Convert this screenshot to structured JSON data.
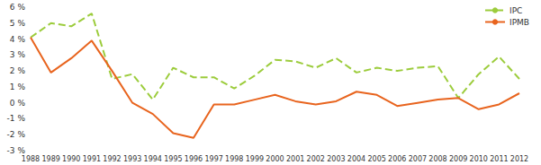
{
  "chart_data": {
    "type": "line",
    "categories": [
      "1988",
      "1989",
      "1990",
      "1991",
      "1992",
      "1993",
      "1994",
      "1995",
      "1996",
      "1997",
      "1998",
      "1999",
      "2000",
      "2001",
      "2002",
      "2003",
      "2004",
      "2005",
      "2006",
      "2007",
      "2008",
      "2009",
      "2010",
      "2011",
      "2012"
    ],
    "series": [
      {
        "name": "IPC",
        "color": "#9ccc3c",
        "line_style": "dashed",
        "marker": "none",
        "values": [
          4.1,
          5.0,
          4.8,
          5.6,
          1.5,
          1.8,
          0.2,
          2.2,
          1.6,
          1.6,
          0.9,
          1.7,
          2.7,
          2.6,
          2.2,
          2.8,
          1.9,
          2.2,
          2.0,
          2.2,
          2.3,
          0.3,
          1.8,
          2.9,
          1.5
        ]
      },
      {
        "name": "IPMB",
        "color": "#e8641e",
        "line_style": "solid",
        "marker": "none",
        "values": [
          4.1,
          1.9,
          2.8,
          3.9,
          2.0,
          0.0,
          -0.7,
          -1.9,
          -2.2,
          -0.1,
          -0.1,
          0.2,
          0.5,
          0.1,
          -0.1,
          0.1,
          0.7,
          0.5,
          -0.2,
          0.0,
          0.2,
          0.3,
          -0.4,
          -0.1,
          0.6
        ]
      }
    ],
    "ylim": [
      -3,
      6
    ],
    "yticks": [
      {
        "value": -3,
        "label": "-3 %"
      },
      {
        "value": -2,
        "label": "-2 %"
      },
      {
        "value": -1,
        "label": "-1 %"
      },
      {
        "value": 0,
        "label": "0 %"
      },
      {
        "value": 1,
        "label": "1 %"
      },
      {
        "value": 2,
        "label": "2 %"
      },
      {
        "value": 3,
        "label": "3 %"
      },
      {
        "value": 4,
        "label": "4 %"
      },
      {
        "value": 5,
        "label": "5 %"
      },
      {
        "value": 6,
        "label": "6 %"
      }
    ],
    "grid": false,
    "legend": "upper right"
  }
}
